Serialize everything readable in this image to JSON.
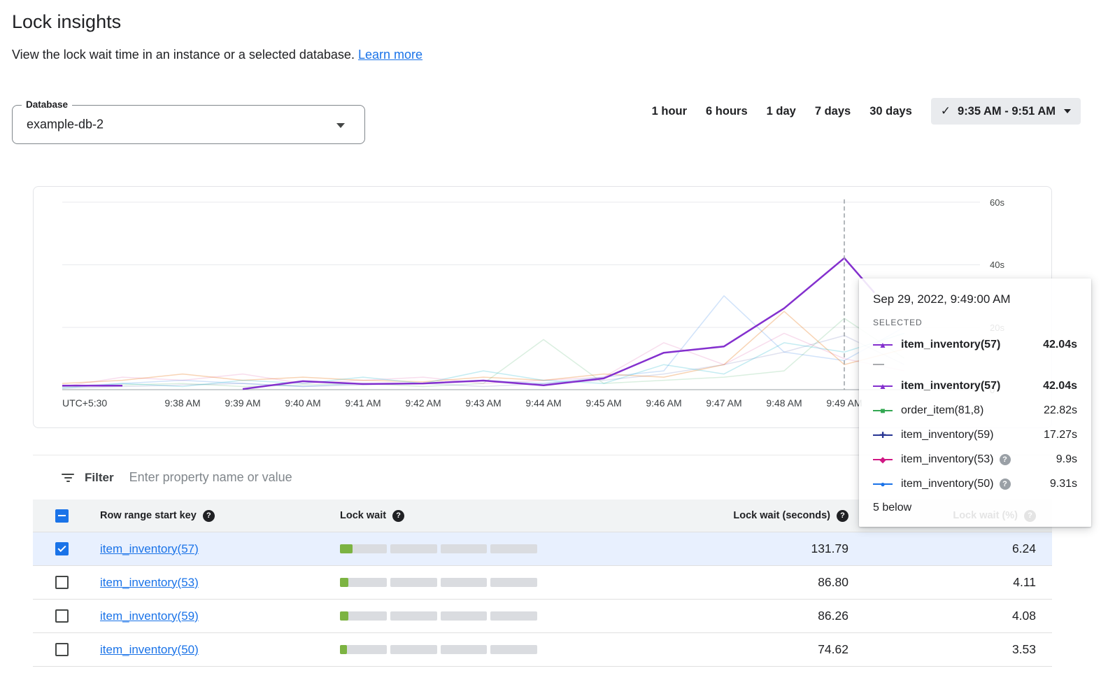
{
  "page": {
    "title": "Lock insights",
    "subtitle": "View the lock wait time in an instance or a selected database.",
    "learn_more_label": "Learn more"
  },
  "icons": {
    "help": "?",
    "check": "✓"
  },
  "database_select": {
    "label": "Database",
    "value": "example-db-2"
  },
  "time_range": {
    "options": [
      "1 hour",
      "6 hours",
      "1 day",
      "7 days",
      "30 days"
    ],
    "selected_label": "9:35 AM - 9:51 AM"
  },
  "chart_data": {
    "type": "line",
    "x_axis_note": "UTC+5:30",
    "ylim": [
      0,
      60
    ],
    "y_ticks": [
      "60s",
      "40s",
      "20s",
      "0"
    ],
    "grid": true,
    "legend_position": "tooltip",
    "selected_point": {
      "time": "9:49 AM",
      "series": "item_inventory(57)",
      "value_seconds": 42.04
    },
    "x_ticks": [
      {
        "m": 2,
        "label": "9:38 AM"
      },
      {
        "m": 3,
        "label": "9:39 AM"
      },
      {
        "m": 4,
        "label": "9:40 AM"
      },
      {
        "m": 5,
        "label": "9:41 AM"
      },
      {
        "m": 6,
        "label": "9:42 AM"
      },
      {
        "m": 7,
        "label": "9:43 AM"
      },
      {
        "m": 8,
        "label": "9:44 AM"
      },
      {
        "m": 9,
        "label": "9:45 AM"
      },
      {
        "m": 10,
        "label": "9:46 AM"
      },
      {
        "m": 11,
        "label": "9:47 AM"
      },
      {
        "m": 12,
        "label": "9:48 AM"
      },
      {
        "m": 13,
        "label": "9:49 AM"
      }
    ],
    "series": [
      {
        "name": "order_item(81,8)",
        "color": "#34a853",
        "opacity": 0.18,
        "x": [
          0,
          1,
          2,
          3,
          4,
          5,
          6,
          7,
          8,
          9,
          10,
          11,
          12,
          13,
          14
        ],
        "values": [
          1,
          1.5,
          2,
          1,
          1.5,
          2,
          1,
          2,
          16,
          2,
          3,
          4,
          6,
          22.8,
          10
        ]
      },
      {
        "name": "item_inventory(59)",
        "color": "#283593",
        "opacity": 0.15,
        "x": [
          0,
          1,
          2,
          3,
          4,
          5,
          6,
          7,
          8,
          9,
          10,
          11,
          12,
          13,
          14
        ],
        "values": [
          0.5,
          1,
          1.5,
          2,
          1,
          1.5,
          2,
          1,
          2,
          3,
          5,
          8,
          12,
          17.3,
          8
        ]
      },
      {
        "name": "item_inventory(53)",
        "color": "#d01884",
        "opacity": 0.15,
        "x": [
          0,
          1,
          2,
          3,
          4,
          5,
          6,
          7,
          8,
          9,
          10,
          11,
          12,
          13,
          14
        ],
        "values": [
          1,
          4,
          3,
          5,
          2,
          3,
          4,
          2,
          3,
          4,
          15,
          8,
          18,
          9.9,
          6
        ]
      },
      {
        "name": "item_inventory(50)",
        "color": "#1a73e8",
        "opacity": 0.2,
        "x": [
          0,
          1,
          2,
          3,
          4,
          5,
          6,
          7,
          8,
          9,
          10,
          11,
          12,
          13,
          14
        ],
        "values": [
          1,
          2,
          3,
          2,
          1,
          2,
          2,
          3,
          2,
          4,
          6,
          30,
          12,
          9.3,
          20
        ]
      },
      {
        "name": "",
        "color": "#e8710a",
        "opacity": 0.3,
        "x": [
          0,
          1,
          2,
          3,
          4,
          5,
          6,
          7,
          8,
          9,
          10,
          11,
          12,
          13,
          14
        ],
        "values": [
          2,
          3,
          5,
          3,
          4,
          3,
          2.5,
          4,
          3,
          5,
          4,
          8,
          25,
          8,
          13
        ]
      },
      {
        "name": "",
        "color": "#12b5cb",
        "opacity": 0.25,
        "x": [
          0,
          1,
          2,
          3,
          4,
          5,
          6,
          7,
          8,
          9,
          10,
          11,
          12,
          13,
          14
        ],
        "values": [
          0.5,
          2,
          1,
          3,
          2,
          4,
          2,
          6,
          3,
          2,
          8,
          5,
          15,
          12,
          18
        ]
      },
      {
        "name": "item_inventory(57)",
        "color": "#8430ce",
        "opacity": 1,
        "width": 2.5,
        "x": [
          0,
          1,
          2,
          3,
          4,
          5,
          6,
          7,
          8,
          9,
          10,
          11,
          12,
          13,
          13.5
        ],
        "values": [
          1.3,
          1.3,
          null,
          0.2,
          2.7,
          1.8,
          2.0,
          2.9,
          1.4,
          3.6,
          11.8,
          13.8,
          26,
          42.04,
          31
        ]
      }
    ]
  },
  "tooltip": {
    "timestamp": "Sep 29, 2022, 9:49:00 AM",
    "selected_heading": "SELECTED",
    "divider": "—",
    "selected": {
      "name": "item_inventory(57)",
      "value": "42.04s",
      "color": "#8430ce",
      "glyph": "▲"
    },
    "rows": [
      {
        "name": "item_inventory(57)",
        "value": "42.04s",
        "color": "#8430ce",
        "glyph": "▲"
      },
      {
        "name": "order_item(81,8)",
        "value": "22.82s",
        "color": "#34a853",
        "glyph": "■"
      },
      {
        "name": "item_inventory(59)",
        "value": "17.27s",
        "color": "#283593",
        "glyph": "✚"
      },
      {
        "name": "item_inventory(53)",
        "value": "9.9s",
        "color": "#d01884",
        "glyph": "◆"
      },
      {
        "name": "item_inventory(50)",
        "value": "9.31s",
        "color": "#1a73e8",
        "glyph": "●"
      }
    ],
    "footer": "5 below"
  },
  "filter": {
    "label": "Filter",
    "placeholder": "Enter property name or value"
  },
  "table": {
    "columns": [
      "Row range start key",
      "Lock wait",
      "Lock wait (seconds)",
      "Lock wait (%)"
    ],
    "rows": [
      {
        "key": "item_inventory(57)",
        "seconds": "131.79",
        "percent": "6.24",
        "bar_pct": "6.24%"
      },
      {
        "key": "item_inventory(53)",
        "seconds": "86.80",
        "percent": "4.11",
        "bar_pct": "4.11%"
      },
      {
        "key": "item_inventory(59)",
        "seconds": "86.26",
        "percent": "4.08",
        "bar_pct": "4.08%"
      },
      {
        "key": "item_inventory(50)",
        "seconds": "74.62",
        "percent": "3.53",
        "bar_pct": "3.53%"
      }
    ]
  }
}
